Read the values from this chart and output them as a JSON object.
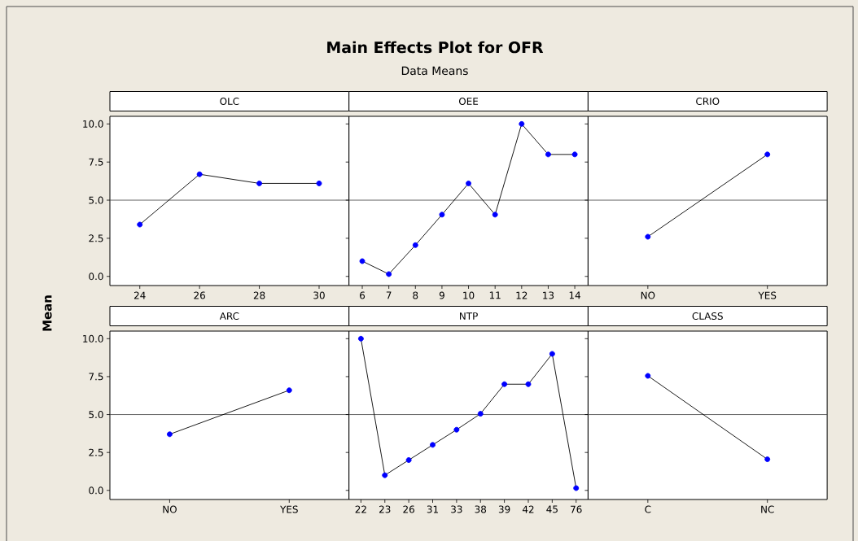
{
  "chart_data": [
    {
      "type": "other",
      "title": "Main Effects Plot for OFR",
      "subtitle": "Data Means"
    },
    {
      "type": "line",
      "title": "OLC",
      "ylabel": "Mean",
      "categories": [
        "24",
        "26",
        "28",
        "30"
      ],
      "values": [
        3.4,
        6.7,
        6.1,
        6.1
      ],
      "color": "#0000ff",
      "marker": "circle",
      "line_style": "solid",
      "ylim": [
        -0.6,
        10.5
      ],
      "yticks": [
        {
          "value": 0,
          "label": "0.0"
        },
        {
          "value": 2.5,
          "label": "2.5"
        },
        {
          "value": 5,
          "label": "5.0"
        },
        {
          "value": 7.5,
          "label": "7.5"
        },
        {
          "value": 10,
          "label": "10.0"
        }
      ],
      "ref_lines": [
        {
          "axis": "y",
          "value": 5.0,
          "color": "#404040"
        }
      ]
    },
    {
      "type": "line",
      "title": "OEE",
      "categories": [
        "6",
        "7",
        "8",
        "9",
        "10",
        "11",
        "12",
        "13",
        "14"
      ],
      "values": [
        1.0,
        0.15,
        2.05,
        4.05,
        6.1,
        4.05,
        10.0,
        8.0,
        8.0
      ],
      "color": "#0000ff",
      "marker": "circle",
      "line_style": "solid",
      "tick_labels": "x",
      "ylim": [
        -0.6,
        10.5
      ],
      "yticks": [
        {
          "value": 0,
          "label": null
        },
        {
          "value": 2.5,
          "label": null
        },
        {
          "value": 5,
          "label": null
        },
        {
          "value": 7.5,
          "label": null
        },
        {
          "value": 10,
          "label": null
        }
      ],
      "ref_lines": [
        {
          "axis": "y",
          "value": 5.0,
          "color": "#404040"
        }
      ]
    },
    {
      "type": "line",
      "title": "CRIO",
      "categories": [
        "NO",
        "YES"
      ],
      "values": [
        2.6,
        8.0
      ],
      "color": "#0000ff",
      "marker": "circle",
      "line_style": "solid",
      "tick_labels": "x",
      "ylim": [
        -0.6,
        10.5
      ],
      "yticks": [
        {
          "value": 0,
          "label": null
        },
        {
          "value": 2.5,
          "label": null
        },
        {
          "value": 5,
          "label": null
        },
        {
          "value": 7.5,
          "label": null
        },
        {
          "value": 10,
          "label": null
        }
      ],
      "ref_lines": [
        {
          "axis": "y",
          "value": 5.0,
          "color": "#404040"
        }
      ]
    },
    {
      "type": "line",
      "title": "ARC",
      "categories": [
        "NO",
        "YES"
      ],
      "values": [
        3.7,
        6.6
      ],
      "color": "#0000ff",
      "marker": "circle",
      "line_style": "solid",
      "ylim": [
        -0.6,
        10.5
      ],
      "yticks": [
        {
          "value": 0,
          "label": "0.0"
        },
        {
          "value": 2.5,
          "label": "2.5"
        },
        {
          "value": 5,
          "label": "5.0"
        },
        {
          "value": 7.5,
          "label": "7.5"
        },
        {
          "value": 10,
          "label": "10.0"
        }
      ],
      "ref_lines": [
        {
          "axis": "y",
          "value": 5.0,
          "color": "#404040"
        }
      ]
    },
    {
      "type": "line",
      "title": "NTP",
      "categories": [
        "22",
        "23",
        "26",
        "31",
        "33",
        "38",
        "39",
        "42",
        "45",
        "76"
      ],
      "values": [
        10.0,
        1.0,
        2.0,
        3.0,
        4.0,
        5.05,
        7.0,
        7.0,
        9.0,
        0.15
      ],
      "color": "#0000ff",
      "marker": "circle",
      "line_style": "solid",
      "tick_labels": "x",
      "ylim": [
        -0.6,
        10.5
      ],
      "yticks": [
        {
          "value": 0,
          "label": null
        },
        {
          "value": 2.5,
          "label": null
        },
        {
          "value": 5,
          "label": null
        },
        {
          "value": 7.5,
          "label": null
        },
        {
          "value": 10,
          "label": null
        }
      ],
      "ref_lines": [
        {
          "axis": "y",
          "value": 5.0,
          "color": "#404040"
        }
      ]
    },
    {
      "type": "line",
      "title": "CLASS",
      "categories": [
        "C",
        "NC"
      ],
      "values": [
        7.55,
        2.05
      ],
      "color": "#0000ff",
      "marker": "circle",
      "line_style": "solid",
      "tick_labels": "x",
      "ylim": [
        -0.6,
        10.5
      ],
      "yticks": [
        {
          "value": 0,
          "label": null
        },
        {
          "value": 2.5,
          "label": null
        },
        {
          "value": 5,
          "label": null
        },
        {
          "value": 7.5,
          "label": null
        },
        {
          "value": 10,
          "label": null
        }
      ],
      "ref_lines": [
        {
          "axis": "y",
          "value": 5.0,
          "color": "#404040"
        }
      ]
    }
  ]
}
